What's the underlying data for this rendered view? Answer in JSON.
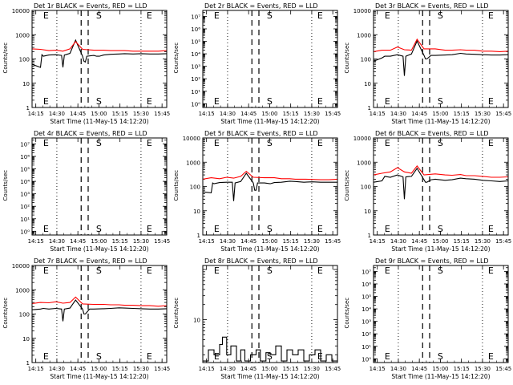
{
  "figure": {
    "x_tick_labels": [
      "14:15",
      "14:30",
      "14:45",
      "15:00",
      "15:15",
      "15:30",
      "15:45"
    ],
    "x_label": "Start Time (11-May-15 14:12:20)",
    "y_label": "Counts/sec",
    "colors": {
      "events": "#000000",
      "lld": "#ff0000",
      "axes": "#000000",
      "background": "#ffffff"
    }
  },
  "chart_data": [
    {
      "type": "line",
      "title": "Det 1r BLACK = Events, RED = LLD",
      "yscale": "log",
      "ylim": [
        1,
        10000
      ],
      "y_tick_labels": [
        "1",
        "10",
        "100",
        "1000",
        "10000"
      ],
      "markers": [
        {
          "label": "E",
          "x_min": 14.2,
          "side": "left"
        },
        {
          "label": "S",
          "x_min": 44.5,
          "side": "right"
        },
        {
          "label": "E",
          "x_min": 80.5,
          "side": "right"
        }
      ],
      "series": [
        {
          "name": "Events",
          "x": [
            0,
            6,
            7,
            8,
            12,
            17,
            21,
            22,
            23,
            24,
            27,
            31,
            36,
            37,
            38,
            39,
            44,
            46,
            48,
            51,
            56,
            62,
            66,
            72,
            78,
            84,
            90,
            96
          ],
          "y": [
            60,
            45,
            150,
            130,
            145,
            150,
            140,
            45,
            145,
            150,
            170,
            600,
            130,
            80,
            75,
            130,
            140,
            130,
            130,
            145,
            155,
            160,
            165,
            160,
            165,
            160,
            160,
            165
          ]
        },
        {
          "name": "LLD",
          "x": [
            0,
            6,
            12,
            17,
            22,
            27,
            31,
            36,
            44,
            51,
            56,
            62,
            66,
            72,
            78,
            84,
            90,
            96
          ],
          "y": [
            260,
            250,
            220,
            230,
            210,
            260,
            520,
            250,
            230,
            230,
            220,
            220,
            220,
            210,
            210,
            210,
            210,
            220
          ]
        }
      ]
    },
    {
      "type": "line",
      "title": "Det 2r BLACK = Events, RED = LLD",
      "yscale": "log",
      "ylim": [
        0.5,
        30000000
      ],
      "y_tick_labels": [
        "10⁰",
        "10¹",
        "10²",
        "10³",
        "10⁴",
        "10⁵",
        "10⁶",
        "10⁷"
      ],
      "markers": [
        {
          "label": "E",
          "x_min": 14.2,
          "side": "left"
        },
        {
          "label": "S",
          "x_min": 44.5,
          "side": "right"
        },
        {
          "label": "E",
          "x_min": 80.5,
          "side": "right"
        }
      ],
      "series": []
    },
    {
      "type": "line",
      "title": "Det 3r BLACK = Events, RED = LLD",
      "yscale": "log",
      "ylim": [
        1,
        10000
      ],
      "y_tick_labels": [
        "1",
        "10",
        "100",
        "1000",
        "10000"
      ],
      "markers": [
        {
          "label": "E",
          "x_min": 14.2,
          "side": "left"
        },
        {
          "label": "S",
          "x_min": 44.5,
          "side": "right"
        },
        {
          "label": "E",
          "x_min": 80.5,
          "side": "right"
        }
      ],
      "series": [
        {
          "name": "Events",
          "x": [
            0,
            6,
            8,
            12,
            17,
            21,
            22,
            23,
            27,
            31,
            36,
            37,
            38,
            41,
            44,
            51,
            56,
            62,
            66,
            72,
            78,
            84,
            90,
            96
          ],
          "y": [
            80,
            110,
            130,
            130,
            150,
            130,
            20,
            130,
            160,
            550,
            140,
            100,
            100,
            140,
            140,
            145,
            150,
            170,
            160,
            155,
            150,
            145,
            145,
            150
          ]
        },
        {
          "name": "LLD",
          "x": [
            0,
            6,
            12,
            17,
            22,
            27,
            31,
            36,
            44,
            51,
            56,
            62,
            66,
            72,
            78,
            84,
            90,
            96
          ],
          "y": [
            200,
            230,
            230,
            310,
            240,
            230,
            650,
            260,
            260,
            230,
            230,
            240,
            230,
            230,
            210,
            210,
            200,
            210
          ]
        }
      ]
    },
    {
      "type": "line",
      "title": "Det 4r BLACK = Events, RED = LLD",
      "yscale": "log",
      "ylim": [
        0.5,
        30000000
      ],
      "y_tick_labels": [
        "10⁰",
        "10¹",
        "10²",
        "10³",
        "10⁴",
        "10⁵",
        "10⁶",
        "10⁷"
      ],
      "markers": [
        {
          "label": "E",
          "x_min": 14.2,
          "side": "left"
        },
        {
          "label": "S",
          "x_min": 44.5,
          "side": "right"
        },
        {
          "label": "E",
          "x_min": 80.5,
          "side": "right"
        }
      ],
      "series": []
    },
    {
      "type": "line",
      "title": "Det 5r BLACK = Events, RED = LLD",
      "yscale": "log",
      "ylim": [
        1,
        10000
      ],
      "y_tick_labels": [
        "1",
        "10",
        "100",
        "1000",
        "10000"
      ],
      "markers": [
        {
          "label": "E",
          "x_min": 14.2,
          "side": "left"
        },
        {
          "label": "S",
          "x_min": 44.5,
          "side": "right"
        },
        {
          "label": "E",
          "x_min": 80.5,
          "side": "right"
        }
      ],
      "series": [
        {
          "name": "Events",
          "x": [
            0,
            6,
            7,
            8,
            12,
            17,
            21,
            22,
            23,
            27,
            31,
            36,
            37,
            38,
            39,
            44,
            48,
            51,
            56,
            62,
            66,
            72,
            78,
            84,
            90,
            96
          ],
          "y": [
            60,
            55,
            140,
            130,
            145,
            150,
            150,
            25,
            140,
            160,
            350,
            140,
            70,
            70,
            140,
            140,
            130,
            145,
            150,
            165,
            160,
            150,
            155,
            150,
            150,
            150
          ]
        },
        {
          "name": "LLD",
          "x": [
            0,
            6,
            12,
            17,
            22,
            27,
            31,
            36,
            44,
            51,
            56,
            62,
            66,
            72,
            78,
            84,
            90,
            96
          ],
          "y": [
            200,
            230,
            210,
            240,
            220,
            260,
            420,
            240,
            230,
            230,
            210,
            210,
            200,
            200,
            195,
            190,
            190,
            200
          ]
        }
      ]
    },
    {
      "type": "line",
      "title": "Det 6r BLACK = Events, RED = LLD",
      "yscale": "log",
      "ylim": [
        1,
        10000
      ],
      "y_tick_labels": [
        "1",
        "10",
        "100",
        "1000",
        "10000"
      ],
      "markers": [
        {
          "label": "E",
          "x_min": 14.2,
          "side": "left"
        },
        {
          "label": "S",
          "x_min": 44.5,
          "side": "right"
        },
        {
          "label": "E",
          "x_min": 80.5,
          "side": "right"
        }
      ],
      "series": [
        {
          "name": "Events",
          "x": [
            0,
            6,
            8,
            12,
            17,
            21,
            22,
            23,
            27,
            31,
            36,
            37,
            38,
            41,
            44,
            51,
            56,
            62,
            66,
            72,
            78,
            84,
            90,
            96
          ],
          "y": [
            150,
            170,
            260,
            240,
            300,
            250,
            30,
            250,
            260,
            560,
            190,
            150,
            150,
            190,
            200,
            180,
            190,
            220,
            210,
            200,
            180,
            170,
            160,
            170
          ]
        },
        {
          "name": "LLD",
          "x": [
            0,
            6,
            12,
            17,
            22,
            27,
            31,
            36,
            44,
            51,
            56,
            62,
            66,
            72,
            78,
            84,
            90,
            96
          ],
          "y": [
            300,
            350,
            400,
            600,
            400,
            350,
            700,
            300,
            330,
            300,
            290,
            310,
            280,
            280,
            260,
            240,
            240,
            250
          ]
        }
      ]
    },
    {
      "type": "line",
      "title": "Det 7r BLACK = Events, RED = LLD",
      "yscale": "log",
      "ylim": [
        1,
        10000
      ],
      "y_tick_labels": [
        "1",
        "10",
        "100",
        "1000",
        "10000"
      ],
      "markers": [
        {
          "label": "E",
          "x_min": 14.2,
          "side": "left"
        },
        {
          "label": "S",
          "x_min": 44.5,
          "side": "right"
        },
        {
          "label": "E",
          "x_min": 80.5,
          "side": "right"
        }
      ],
      "series": [
        {
          "name": "Events",
          "x": [
            0,
            6,
            8,
            12,
            17,
            21,
            22,
            23,
            27,
            31,
            36,
            37,
            38,
            41,
            44,
            51,
            56,
            62,
            66,
            72,
            78,
            84,
            90,
            96
          ],
          "y": [
            150,
            160,
            170,
            160,
            170,
            160,
            50,
            160,
            175,
            380,
            160,
            100,
            100,
            160,
            160,
            165,
            170,
            180,
            175,
            170,
            165,
            160,
            160,
            165
          ]
        },
        {
          "name": "LLD",
          "x": [
            0,
            6,
            12,
            17,
            22,
            27,
            31,
            36,
            44,
            51,
            56,
            62,
            66,
            72,
            78,
            84,
            90,
            96
          ],
          "y": [
            270,
            300,
            290,
            320,
            280,
            300,
            500,
            260,
            250,
            250,
            240,
            240,
            230,
            230,
            220,
            220,
            210,
            220
          ]
        }
      ]
    },
    {
      "type": "line",
      "title": "Det 8r BLACK = Events, RED = LLD",
      "yscale": "log",
      "ylim": [
        1.4,
        120
      ],
      "y_tick_labels": [
        "10"
      ],
      "markers": [
        {
          "label": "E",
          "x_min": 14.2,
          "side": "left"
        },
        {
          "label": "S",
          "x_min": 44.5,
          "side": "right"
        },
        {
          "label": "E",
          "x_min": 80.5,
          "side": "right"
        }
      ],
      "series": [
        {
          "name": "Events",
          "x": [
            0,
            4,
            8,
            12,
            14,
            17,
            20,
            24,
            27,
            30,
            34,
            38,
            41,
            45,
            48,
            52,
            56,
            60,
            64,
            68,
            72,
            76,
            80,
            84,
            88,
            92,
            96
          ],
          "y": [
            1.5,
            2.5,
            2.0,
            3.2,
            4.5,
            2.0,
            3.0,
            1.5,
            2.5,
            1.5,
            2.0,
            2.5,
            1.5,
            2.2,
            2.0,
            3.0,
            1.5,
            2.5,
            2.0,
            2.5,
            1.5,
            2.0,
            2.5,
            1.5,
            2.0,
            1.5,
            2.0
          ]
        }
      ]
    },
    {
      "type": "line",
      "title": "Det 9r BLACK = Events, RED = LLD",
      "yscale": "log",
      "ylim": [
        0.5,
        30000000
      ],
      "y_tick_labels": [
        "10⁰",
        "10¹",
        "10²",
        "10³",
        "10⁴",
        "10⁵",
        "10⁶",
        "10⁷"
      ],
      "markers": [
        {
          "label": "E",
          "x_min": 14.2,
          "side": "left"
        },
        {
          "label": "S",
          "x_min": 44.5,
          "side": "right"
        },
        {
          "label": "E",
          "x_min": 80.5,
          "side": "right"
        }
      ],
      "series": []
    }
  ]
}
